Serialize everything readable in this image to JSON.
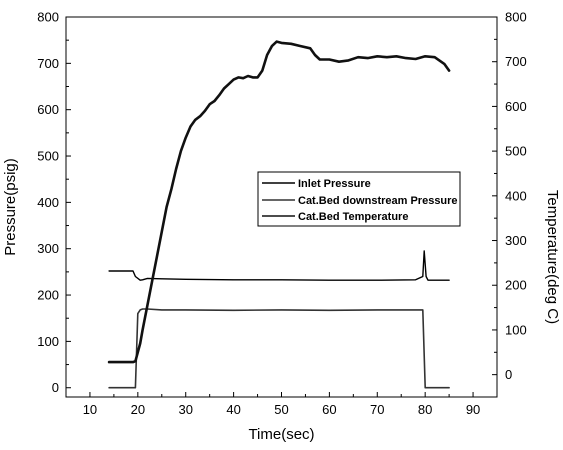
{
  "chart_data": {
    "type": "line",
    "title": "",
    "xlabel": "Time(sec)",
    "ylabel_left": "Pressure(psig)",
    "ylabel_right": "Temperature(deg C)",
    "xlim": [
      5,
      95
    ],
    "ylim_left": [
      -20,
      800
    ],
    "ylim_right": [
      -50,
      800
    ],
    "x_ticks": [
      10,
      20,
      30,
      40,
      50,
      60,
      70,
      80,
      90
    ],
    "y_left_ticks": [
      0,
      100,
      200,
      300,
      400,
      500,
      600,
      700,
      800
    ],
    "y_right_ticks": [
      0,
      100,
      200,
      300,
      400,
      500,
      600,
      700,
      800
    ],
    "grid": false,
    "legend_position": "center-right",
    "series": [
      {
        "name": "Inlet Pressure",
        "axis": "left",
        "color": "#000000",
        "x": [
          14.0,
          19.0,
          19.5,
          20.5,
          21.0,
          22.0,
          25.0,
          30.0,
          40.0,
          50.0,
          60.0,
          70.0,
          78.0,
          79.5,
          79.8,
          80.2,
          80.6,
          85.0
        ],
        "y": [
          252,
          252,
          240,
          232,
          233,
          236,
          235,
          234,
          233,
          233,
          232,
          232,
          233,
          240,
          295,
          240,
          232,
          232
        ]
      },
      {
        "name": "Cat.Bed downstream Pressure",
        "axis": "left",
        "color": "#333333",
        "x": [
          14.0,
          19.5,
          20.0,
          20.5,
          21.0,
          22.0,
          25.0,
          30.0,
          40.0,
          50.0,
          60.0,
          70.0,
          79.5,
          80.0,
          85.0
        ],
        "y": [
          0,
          0,
          160,
          168,
          170,
          170,
          168,
          168,
          167,
          168,
          167,
          168,
          168,
          0,
          0
        ]
      },
      {
        "name": "Cat.Bed Temperature",
        "axis": "right",
        "color": "#111111",
        "x": [
          14.0,
          18.0,
          19.0,
          19.5,
          20.0,
          20.5,
          21.0,
          22.0,
          23.0,
          24.0,
          25.0,
          26.0,
          27.0,
          28.0,
          29.0,
          30.0,
          31.0,
          32.0,
          33.0,
          34.0,
          35.0,
          36.0,
          37.0,
          38.0,
          39.0,
          40.0,
          41.0,
          42.0,
          43.0,
          44.0,
          45.0,
          46.0,
          47.0,
          48.0,
          49.0,
          50.0,
          52.0,
          54.0,
          56.0,
          57.0,
          58.0,
          60.0,
          62.0,
          64.0,
          66.0,
          68.0,
          70.0,
          72.0,
          74.0,
          76.0,
          78.0,
          80.0,
          82.0,
          84.0,
          85.0
        ],
        "y": [
          28,
          28,
          28,
          30,
          50,
          70,
          100,
          155,
          210,
          265,
          320,
          375,
          415,
          460,
          500,
          530,
          555,
          570,
          578,
          590,
          605,
          612,
          625,
          640,
          650,
          660,
          665,
          663,
          668,
          665,
          665,
          680,
          715,
          735,
          745,
          742,
          740,
          735,
          730,
          715,
          705,
          705,
          700,
          703,
          710,
          708,
          712,
          710,
          712,
          708,
          706,
          712,
          710,
          695,
          680
        ]
      }
    ]
  }
}
